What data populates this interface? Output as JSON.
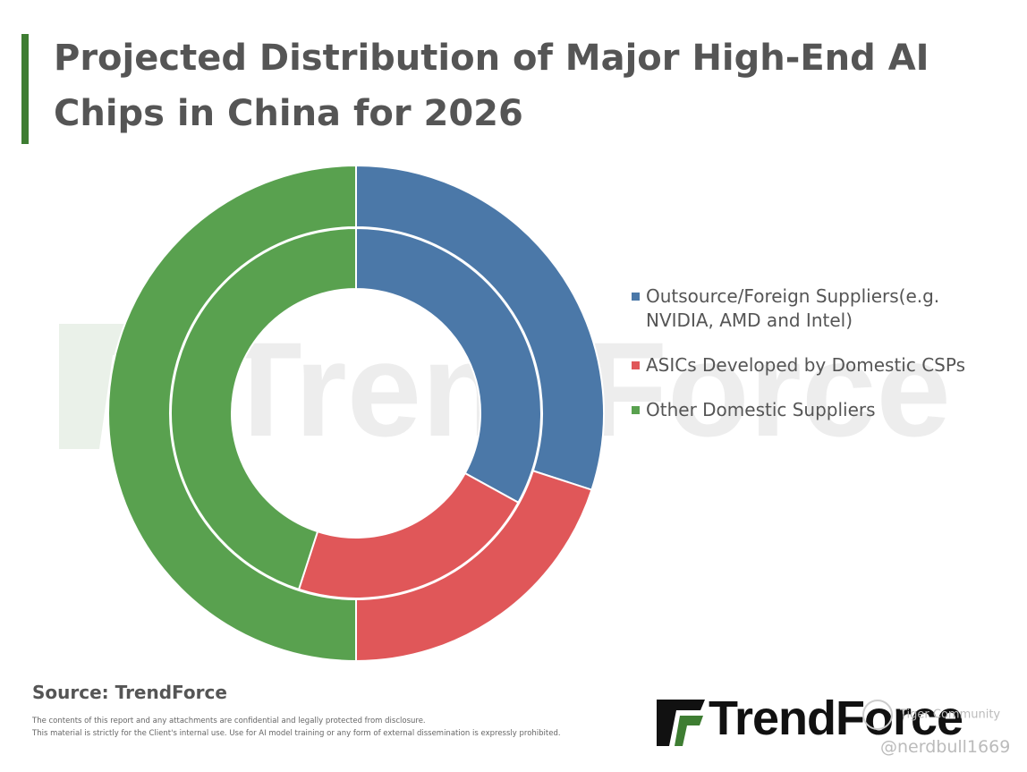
{
  "title": "Projected Distribution of Major High-End AI Chips in China for 2026",
  "chart_data": {
    "type": "pie",
    "variant": "double-donut",
    "categories": [
      "Outsource/Foreign Suppliers(e.g. NVIDIA, AMD and Intel)",
      "ASICs Developed by Domestic CSPs",
      "Other Domestic Suppliers"
    ],
    "colors": [
      "#4b78a8",
      "#e05759",
      "#59a14f"
    ],
    "series": [
      {
        "name": "outer",
        "values": [
          30,
          20,
          50
        ]
      },
      {
        "name": "inner",
        "values": [
          33,
          22,
          45
        ]
      }
    ],
    "legend_position": "right"
  },
  "source": "Source: TrendForce",
  "disclaimer": [
    "The contents of this report and any attachments are confidential and legally protected from disclosure.",
    "This material is strictly for the Client's internal use. Use for AI model training or any form of external dissemination is expressly prohibited."
  ],
  "logo": {
    "text": "TrendForce",
    "brand_color": "#3e7d32"
  },
  "watermark": {
    "text": "TrendForce"
  },
  "overlay": {
    "community": "Tiger Community",
    "handle": "@nerdbull1669"
  }
}
